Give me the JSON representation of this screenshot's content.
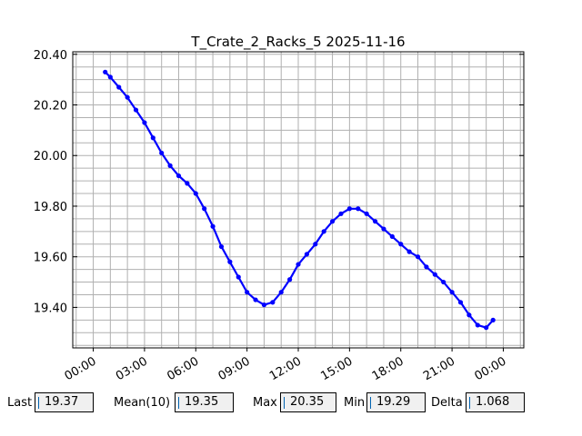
{
  "chart_data": {
    "type": "line",
    "title": "T_Crate_2_Racks_5 2025-11-16",
    "xlabel": "",
    "ylabel": "",
    "x_tick_labels": [
      "00:00",
      "03:00",
      "06:00",
      "09:00",
      "12:00",
      "15:00",
      "18:00",
      "21:00",
      "00:00"
    ],
    "x_tick_hours": [
      0,
      3,
      6,
      9,
      12,
      15,
      18,
      21,
      24
    ],
    "y_tick_labels": [
      "19.40",
      "19.60",
      "19.80",
      "20.00",
      "20.20",
      "20.40"
    ],
    "y_tick_values": [
      19.4,
      19.6,
      19.8,
      20.0,
      20.2,
      20.4
    ],
    "xlim_hours": [
      -1.2,
      25.2
    ],
    "ylim": [
      19.24,
      20.41
    ],
    "grid": true,
    "series": [
      {
        "color": "#0000ff",
        "marker": "circle",
        "x_hours": [
          0.7,
          1.0,
          1.5,
          2.0,
          2.5,
          3.0,
          3.5,
          4.0,
          4.5,
          5.0,
          5.5,
          6.0,
          6.5,
          7.0,
          7.5,
          8.0,
          8.5,
          9.0,
          9.5,
          10.0,
          10.5,
          11.0,
          11.5,
          12.0,
          12.5,
          13.0,
          13.5,
          14.0,
          14.5,
          15.0,
          15.5,
          16.0,
          16.5,
          17.0,
          17.5,
          18.0,
          18.5,
          19.0,
          19.5,
          20.0,
          20.5,
          21.0,
          21.5,
          22.0,
          22.5,
          23.0,
          23.4
        ],
        "values": [
          20.33,
          20.31,
          20.27,
          20.23,
          20.18,
          20.13,
          20.07,
          20.01,
          19.96,
          19.92,
          19.89,
          19.85,
          19.79,
          19.72,
          19.64,
          19.58,
          19.52,
          19.46,
          19.43,
          19.41,
          19.42,
          19.46,
          19.51,
          19.57,
          19.61,
          19.65,
          19.7,
          19.74,
          19.77,
          19.79,
          19.79,
          19.77,
          19.74,
          19.71,
          19.68,
          19.65,
          19.62,
          19.6,
          19.56,
          19.53,
          19.5,
          19.46,
          19.42,
          19.37,
          19.33,
          19.32,
          19.35
        ]
      }
    ]
  },
  "stats": [
    {
      "label": "Last",
      "value": "19.37"
    },
    {
      "label": "Mean(10)",
      "value": "19.35"
    },
    {
      "label": "Max",
      "value": "20.35"
    },
    {
      "label": "Min",
      "value": "19.29"
    },
    {
      "label": "Delta",
      "value": "1.068"
    }
  ]
}
